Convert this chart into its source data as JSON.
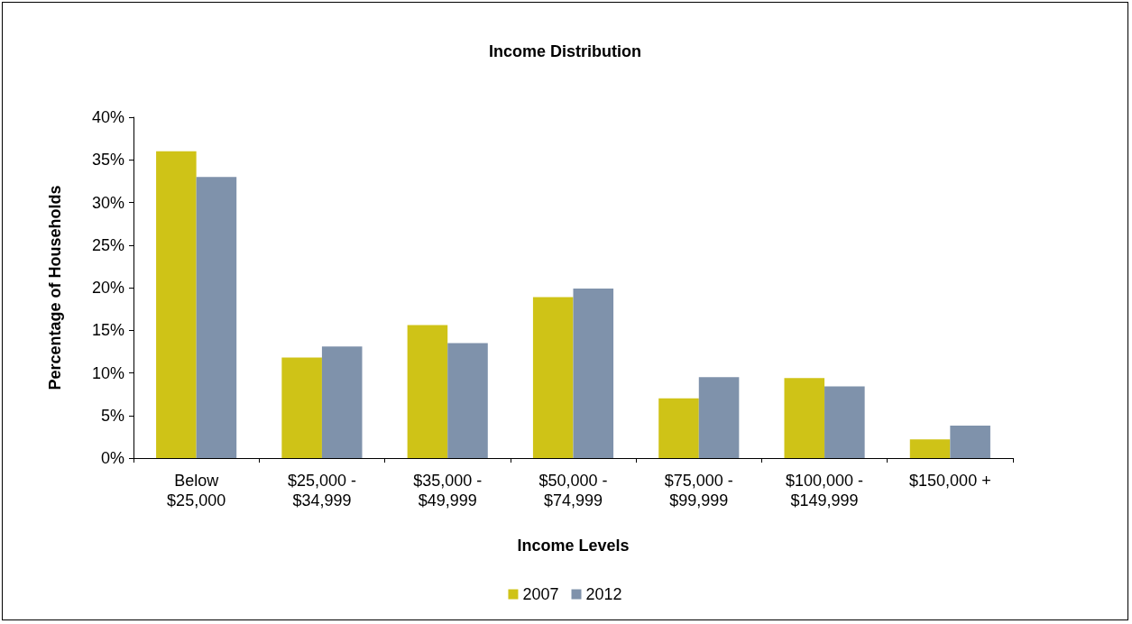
{
  "chart_data": {
    "type": "bar",
    "title": "Income Distribution",
    "xlabel": "Income Levels",
    "ylabel": "Percentage of Households",
    "categories": [
      "Below\n$25,000",
      "$25,000 -\n$34,999",
      "$35,000 -\n$49,999",
      "$50,000 -\n$74,999",
      "$75,000 -\n$99,999",
      "$100,000 -\n$149,999",
      "$150,000 +"
    ],
    "series": [
      {
        "name": "2007",
        "color": "#cfc317",
        "values": [
          36.0,
          11.8,
          15.6,
          18.9,
          7.0,
          9.4,
          2.2
        ]
      },
      {
        "name": "2012",
        "color": "#7f92ab",
        "values": [
          33.0,
          13.1,
          13.5,
          19.9,
          9.5,
          8.4,
          3.8
        ]
      }
    ],
    "ylim": [
      0,
      40
    ],
    "yticks": [
      {
        "value": 0,
        "label": "0%"
      },
      {
        "value": 5,
        "label": "5%"
      },
      {
        "value": 10,
        "label": "10%"
      },
      {
        "value": 15,
        "label": "15%"
      },
      {
        "value": 20,
        "label": "20%"
      },
      {
        "value": 25,
        "label": "25%"
      },
      {
        "value": 30,
        "label": "30%"
      },
      {
        "value": 35,
        "label": "35%"
      },
      {
        "value": 40,
        "label": "40%"
      }
    ],
    "grid": false,
    "legend": "bottom"
  }
}
